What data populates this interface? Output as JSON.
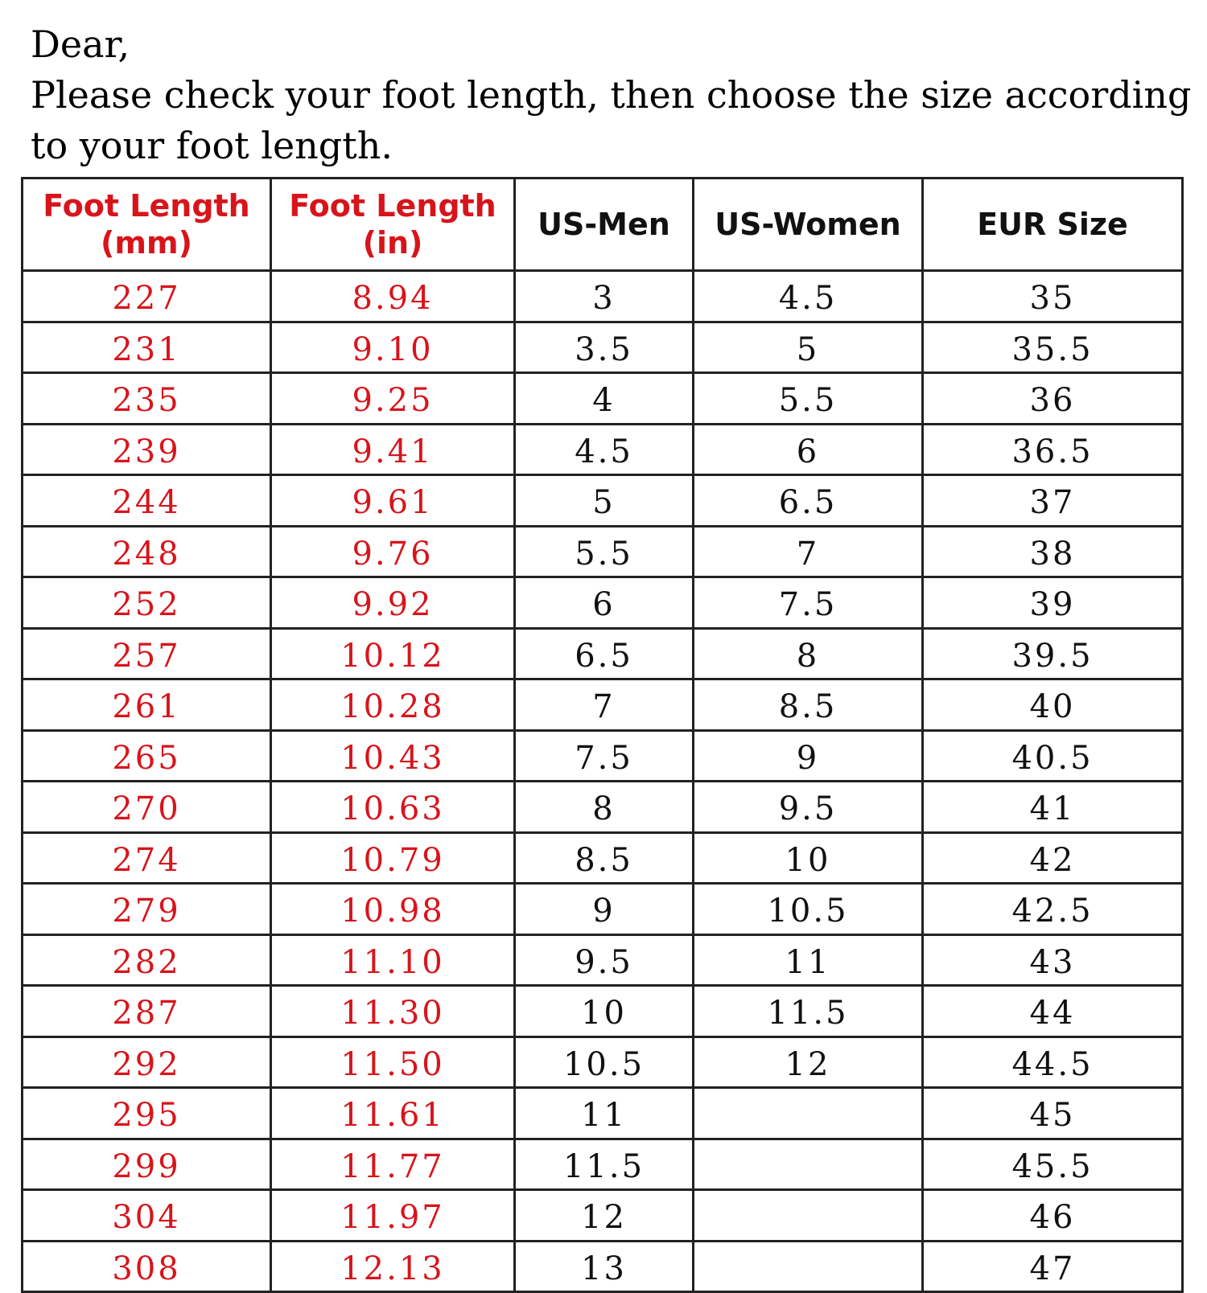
{
  "intro": {
    "line1": "Dear,",
    "line2": "Please check your foot length, then choose the size according",
    "line3": "to your foot length."
  },
  "colors": {
    "accent": "#d8141b",
    "text": "#111111"
  },
  "table": {
    "headers": [
      "Foot Length (mm)",
      "Foot Length (in)",
      "US-Men",
      "US-Women",
      "EUR Size"
    ],
    "rows": [
      [
        "227",
        "8.94",
        "3",
        "4.5",
        "35"
      ],
      [
        "231",
        "9.10",
        "3.5",
        "5",
        "35.5"
      ],
      [
        "235",
        "9.25",
        "4",
        "5.5",
        "36"
      ],
      [
        "239",
        "9.41",
        "4.5",
        "6",
        "36.5"
      ],
      [
        "244",
        "9.61",
        "5",
        "6.5",
        "37"
      ],
      [
        "248",
        "9.76",
        "5.5",
        "7",
        "38"
      ],
      [
        "252",
        "9.92",
        "6",
        "7.5",
        "39"
      ],
      [
        "257",
        "10.12",
        "6.5",
        "8",
        "39.5"
      ],
      [
        "261",
        "10.28",
        "7",
        "8.5",
        "40"
      ],
      [
        "265",
        "10.43",
        "7.5",
        "9",
        "40.5"
      ],
      [
        "270",
        "10.63",
        "8",
        "9.5",
        "41"
      ],
      [
        "274",
        "10.79",
        "8.5",
        "10",
        "42"
      ],
      [
        "279",
        "10.98",
        "9",
        "10.5",
        "42.5"
      ],
      [
        "282",
        "11.10",
        "9.5",
        "11",
        "43"
      ],
      [
        "287",
        "11.30",
        "10",
        "11.5",
        "44"
      ],
      [
        "292",
        "11.50",
        "10.5",
        "12",
        "44.5"
      ],
      [
        "295",
        "11.61",
        "11",
        "",
        "45"
      ],
      [
        "299",
        "11.77",
        "11.5",
        "",
        "45.5"
      ],
      [
        "304",
        "11.97",
        "12",
        "",
        "46"
      ],
      [
        "308",
        "12.13",
        "13",
        "",
        "47"
      ]
    ]
  }
}
